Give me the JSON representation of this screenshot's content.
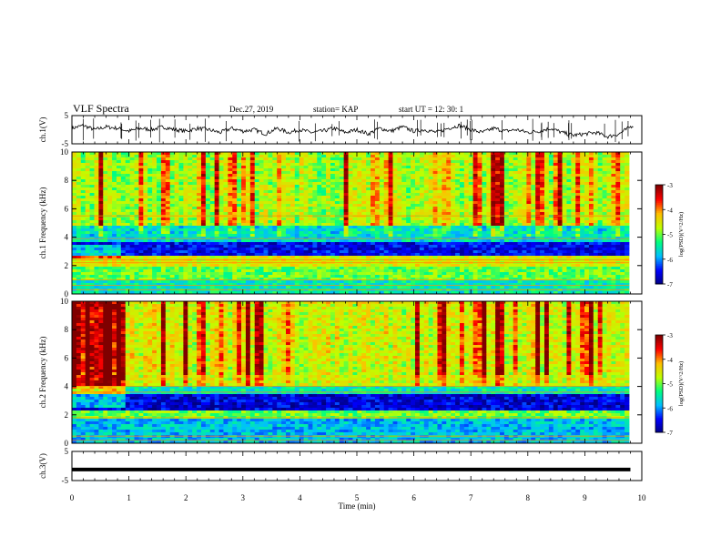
{
  "header": {
    "title": "VLF Spectra",
    "date": "Dec.27, 2019",
    "station": "station= KAP",
    "start": "start  UT =   12: 30: 1"
  },
  "chart_data": [
    {
      "type": "line",
      "name": "ch1-waveform",
      "ylabel": "ch.1(V)",
      "ylim": [
        -5,
        5
      ],
      "yticks": [
        "5",
        "-5"
      ],
      "xlim": [
        0,
        10
      ],
      "series": [
        {
          "x": [
            0,
            0.2,
            0.4,
            0.6,
            0.8,
            1.0,
            1.2,
            1.4,
            1.6,
            1.8,
            2.0,
            2.2,
            2.4,
            2.6,
            2.8,
            3.0,
            3.2,
            3.4,
            3.6,
            3.8,
            4.0,
            4.2,
            4.4,
            4.6,
            4.8,
            5.0,
            5.2,
            5.4,
            5.6,
            5.8,
            6.0,
            6.2,
            6.4,
            6.6,
            6.8,
            7.0,
            7.2,
            7.4,
            7.6,
            7.8,
            8.0,
            8.2,
            8.4,
            8.6,
            8.8,
            9.0,
            9.2,
            9.4,
            9.6,
            9.8
          ],
          "values": [
            0.5,
            1.5,
            0.0,
            1.0,
            0.5,
            -0.5,
            0.5,
            0.0,
            1.0,
            0.0,
            -0.5,
            0.5,
            0.0,
            -1.0,
            0.5,
            -0.5,
            0.0,
            -1.5,
            0.5,
            -1.0,
            0.0,
            -1.0,
            -0.5,
            0.5,
            -1.0,
            0.0,
            -1.5,
            0.5,
            -0.5,
            1.0,
            -0.5,
            0.0,
            -1.0,
            0.5,
            1.5,
            0.0,
            -1.0,
            0.5,
            -0.5,
            0.0,
            -1.0,
            -0.5,
            0.5,
            -1.0,
            -2.0,
            -1.5,
            -1.0,
            -2.5,
            -1.5,
            1.0
          ]
        }
      ]
    },
    {
      "type": "heatmap",
      "name": "ch1-spectrogram",
      "ylabel": "ch.1 Frequency (kHz)",
      "ylim": [
        0,
        10
      ],
      "yticks": [
        "0",
        "2",
        "4",
        "6",
        "8",
        "10"
      ],
      "xlim": [
        0,
        10
      ],
      "colorbar": {
        "label": "log(PSD)(V^2/Hz)",
        "range": [
          -7,
          -3
        ],
        "ticks": [
          "-3",
          "-4",
          "-5",
          "-6",
          "-7"
        ]
      },
      "bands_khz": [
        {
          "from": 0,
          "to": 1,
          "log_psd": -5.5
        },
        {
          "from": 1,
          "to": 2,
          "log_psd": -5.0
        },
        {
          "from": 2,
          "to": 2.6,
          "log_psd": -4.5
        },
        {
          "from": 2.6,
          "to": 3.6,
          "log_psd": -6.5
        },
        {
          "from": 3.6,
          "to": 4.8,
          "log_psd": -5.6
        },
        {
          "from": 4.8,
          "to": 10,
          "log_psd": -4.8
        }
      ]
    },
    {
      "type": "heatmap",
      "name": "ch2-spectrogram",
      "ylabel": "ch.2 Frequency (kHz)",
      "ylim": [
        0,
        10
      ],
      "yticks": [
        "0",
        "2",
        "4",
        "6",
        "8",
        "10"
      ],
      "xlim": [
        0,
        10
      ],
      "colorbar": {
        "label": "log(PSD)(V^2/Hz)",
        "range": [
          -7,
          -3
        ],
        "ticks": [
          "-3",
          "-4",
          "-5",
          "-6",
          "-7"
        ]
      },
      "bands_khz": [
        {
          "from": 0,
          "to": 1.8,
          "log_psd": -5.8
        },
        {
          "from": 1.8,
          "to": 2.3,
          "log_psd": -5.0
        },
        {
          "from": 2.3,
          "to": 3.4,
          "log_psd": -6.6
        },
        {
          "from": 3.4,
          "to": 4.0,
          "log_psd": -5.5
        },
        {
          "from": 4.0,
          "to": 10,
          "log_psd": -4.6
        }
      ]
    },
    {
      "type": "line",
      "name": "ch3-waveform",
      "ylabel": "ch.3(V)",
      "ylim": [
        -5,
        5
      ],
      "yticks": [
        "5",
        "-5"
      ],
      "xlim": [
        0,
        10
      ],
      "series": [
        {
          "x": [
            0,
            9.8
          ],
          "values": [
            -1.2,
            -1.2
          ]
        }
      ]
    }
  ],
  "xaxis": {
    "label": "Time  (min)",
    "ticks": [
      "0",
      "1",
      "2",
      "3",
      "4",
      "5",
      "6",
      "7",
      "8",
      "9",
      "10"
    ]
  },
  "colors": {
    "background": "#ffffff",
    "line": "#000000",
    "colormap": [
      "#00007f",
      "#0000ff",
      "#00bfff",
      "#00ff7f",
      "#bfff00",
      "#ffbf00",
      "#ff0000",
      "#7f0000"
    ]
  }
}
